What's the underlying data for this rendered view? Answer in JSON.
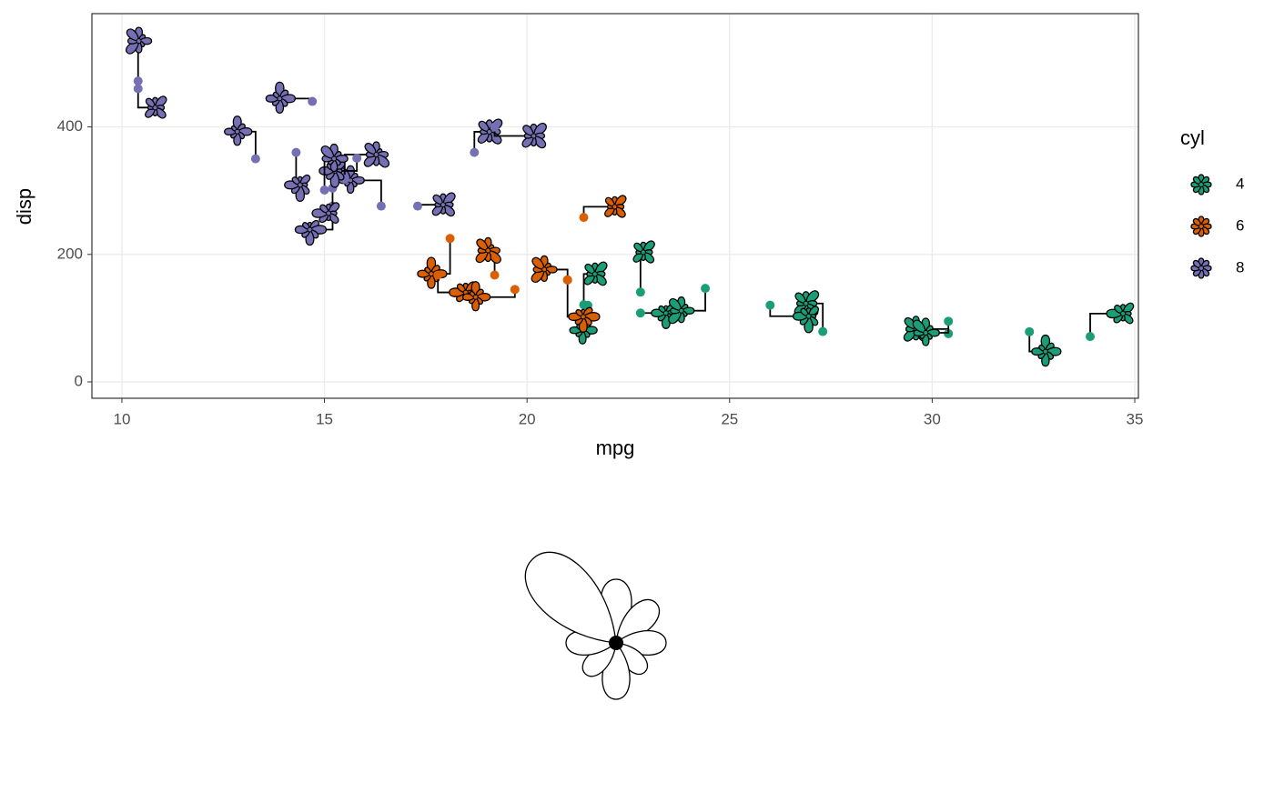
{
  "chart_data": {
    "type": "scatter",
    "x_label": "mpg",
    "y_label": "disp",
    "xlim": [
      9.26,
      35.09
    ],
    "ylim": [
      -25.7,
      577.7
    ],
    "xticks": [
      10,
      15,
      20,
      25,
      30,
      35
    ],
    "yticks": [
      0,
      200,
      400
    ],
    "grid": true,
    "legend_title": "cyl",
    "legend_position": "right",
    "series": [
      {
        "name": "4",
        "color": "#1B9E77",
        "x": [
          22.8,
          24.4,
          22.8,
          32.4,
          30.4,
          33.9,
          21.5,
          27.3,
          26.0,
          30.4,
          21.4
        ],
        "values": [
          108,
          146.7,
          140.8,
          78.7,
          75.7,
          71.1,
          120.1,
          79,
          120.3,
          95.1,
          121
        ]
      },
      {
        "name": "6",
        "color": "#D95F02",
        "x": [
          21.0,
          21.0,
          21.4,
          18.1,
          19.2,
          17.8,
          19.7
        ],
        "values": [
          160,
          160,
          258,
          225,
          167.6,
          167.6,
          145
        ]
      },
      {
        "name": "8",
        "color": "#7570B3",
        "x": [
          18.7,
          14.3,
          16.4,
          17.3,
          15.2,
          10.4,
          10.4,
          14.7,
          15.5,
          15.2,
          13.3,
          19.2,
          15.8,
          15.0
        ],
        "values": [
          360,
          360,
          275.8,
          275.8,
          275.8,
          472,
          460,
          440,
          318,
          304,
          350,
          400,
          351,
          301
        ]
      }
    ]
  }
}
